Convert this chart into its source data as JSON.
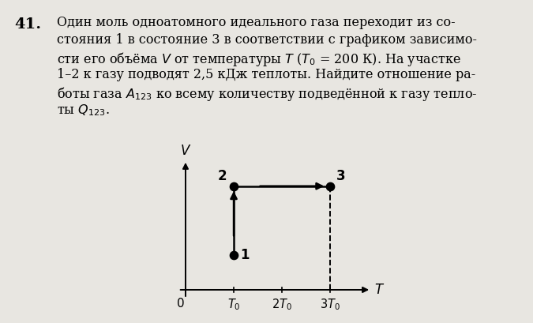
{
  "background_color": "#e8e6e1",
  "number": "41.",
  "text_lines": [
    "Один моль одноатомного идеального газа переходит из со-",
    "стояния 1 в состояние 3 в соответствии с графиком зависимо-",
    "сти его объёма $V$ от температуры $T$ ($T_0$ = 200 К). На участке",
    "1–2 к газу подводят 2,5 кДж теплоты. Найдите отношение ра-",
    "боты газа $A_{123}$ ко всему количеству подведённой к газу тепло-",
    "ты $Q_{123}$."
  ],
  "points": {
    "1": [
      1,
      1
    ],
    "2": [
      1,
      3
    ],
    "3": [
      3,
      3
    ]
  },
  "x_ticks": [
    1,
    2,
    3
  ],
  "x_tick_labels": [
    "$T_0$",
    "$2T_0$",
    "$3T_0$"
  ],
  "x_label": "$T$",
  "y_label": "$V$",
  "xlim": [
    -0.2,
    4.0
  ],
  "ylim": [
    -0.4,
    3.9
  ],
  "origin_label": "0"
}
